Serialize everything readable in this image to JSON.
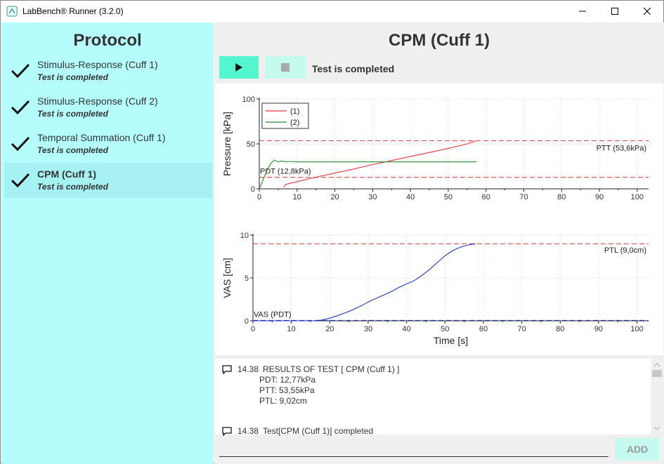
{
  "window": {
    "title": "LabBench® Runner (3.2.0)"
  },
  "sidebar": {
    "title": "Protocol",
    "items": [
      {
        "name": "Stimulus-Response (Cuff 1)",
        "status": "Test is completed",
        "active": false
      },
      {
        "name": "Stimulus-Response (Cuff 2)",
        "status": "Test is completed",
        "active": false
      },
      {
        "name": "Temporal Summation (Cuff 1)",
        "status": "Test is completed",
        "active": false
      },
      {
        "name": "CPM (Cuff 1)",
        "status": "Test is completed",
        "active": true
      }
    ]
  },
  "main": {
    "title": "CPM (Cuff 1)",
    "status": "Test is completed"
  },
  "chart_data": [
    {
      "type": "line",
      "ylabel": "Pressure [kPa]",
      "xlabel": "",
      "xlim": [
        0,
        103
      ],
      "ylim": [
        0,
        100
      ],
      "xticks": [
        0,
        10,
        20,
        30,
        40,
        50,
        60,
        70,
        80,
        90,
        100
      ],
      "yticks": [
        0,
        50,
        100
      ],
      "grid": true,
      "legend": {
        "placement": "top-left",
        "entries": [
          "(1)",
          "(2)"
        ]
      },
      "series": [
        {
          "name": "(1)",
          "color": "#e8393c",
          "x": [
            6.5,
            7,
            8,
            10,
            15,
            20,
            25,
            30,
            35,
            40,
            45,
            50,
            55,
            57.5
          ],
          "y": [
            2,
            5,
            6,
            8,
            13,
            17.5,
            22,
            27,
            31.5,
            36,
            40.5,
            45,
            50,
            53.6
          ]
        },
        {
          "name": "(2)",
          "color": "#2e8a2e",
          "x": [
            0,
            1,
            2,
            3,
            4,
            5,
            6,
            7,
            8,
            10,
            20,
            30,
            40,
            50,
            57.5
          ],
          "y": [
            0,
            10,
            20,
            28,
            32,
            30,
            31,
            30,
            30.5,
            30,
            30,
            30,
            30,
            30,
            30
          ]
        }
      ],
      "reference_lines": [
        {
          "y": 53.6,
          "label": "PTT (53,6kPa)",
          "color": "#d63a3a"
        },
        {
          "y": 12.8,
          "label": "PDT (12,8kPa)",
          "color": "#d63a3a"
        }
      ]
    },
    {
      "type": "line",
      "ylabel": "VAS [cm]",
      "xlabel": "Time [s]",
      "xlim": [
        0,
        103
      ],
      "ylim": [
        0,
        10
      ],
      "xticks": [
        0,
        10,
        20,
        30,
        40,
        50,
        60,
        70,
        80,
        90,
        100
      ],
      "yticks": [
        0,
        5,
        10
      ],
      "grid": true,
      "series": [
        {
          "name": "VAS",
          "color": "#2233cc",
          "x": [
            0,
            16,
            18,
            20,
            22,
            25,
            28,
            30,
            33,
            36,
            38,
            40,
            42,
            44,
            46,
            48,
            50,
            52,
            54,
            56,
            58
          ],
          "y": [
            0,
            0,
            0.1,
            0.3,
            0.6,
            1.1,
            1.7,
            2.2,
            2.8,
            3.4,
            3.9,
            4.3,
            4.7,
            5.3,
            6.0,
            6.8,
            7.6,
            8.2,
            8.6,
            8.85,
            9.0
          ]
        }
      ],
      "reference_lines": [
        {
          "y": 9.0,
          "label": "PTL (9,0cm)",
          "color": "#d63a3a"
        },
        {
          "y": 0.05,
          "label": "VAS (PDT)",
          "color": "#2233cc"
        }
      ]
    }
  ],
  "log": {
    "entries": [
      {
        "time": "14.38",
        "message": "RESULTS OF TEST [ CPM (Cuff 1) ]",
        "lines": [
          "PDT: 12,77kPa",
          "PTT: 53,55kPa",
          "PTL: 9,02cm"
        ]
      },
      {
        "time": "14.38",
        "message": "Test[CPM (Cuff 1)] completed",
        "lines": []
      }
    ]
  },
  "input": {
    "placeholder": ""
  },
  "add_button": {
    "label": "ADD"
  }
}
